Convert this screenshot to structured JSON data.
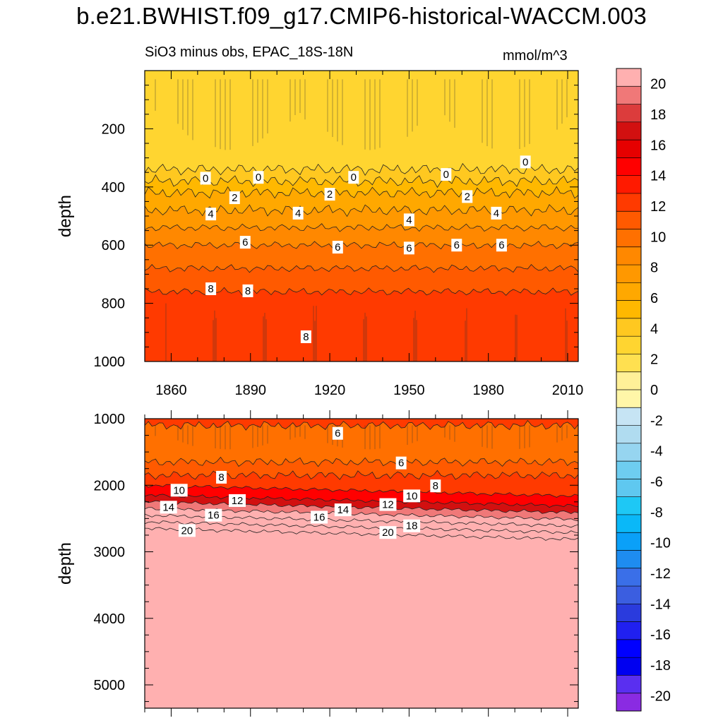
{
  "title": "b.e21.BWHIST.f09_g17.CMIP6-historical-WACCM.003",
  "subtitle_left": "SiO3 minus obs, EPAC_18S-18N",
  "subtitle_right": "mmol/m^3",
  "colors": {
    "palette": [
      "#8a2be2",
      "#5a2ff0",
      "#0000f0",
      "#0000ff",
      "#2020f0",
      "#2a3bdd",
      "#3b5ee0",
      "#3a6fe8",
      "#1e8cf0",
      "#0aa0f8",
      "#0ab8f8",
      "#1ec8f5",
      "#5fc8f0",
      "#6ecdf0",
      "#96d5f0",
      "#b0dcf0",
      "#c6e4f4",
      "#fff6a8",
      "#fff098",
      "#ffe050",
      "#ffd530",
      "#ffc820",
      "#ffb800",
      "#ffa800",
      "#ff9800",
      "#ff8800",
      "#ff7000",
      "#ff5a00",
      "#ff3a00",
      "#ff1a00",
      "#ff0000",
      "#e60000",
      "#d21010",
      "#dc3c3c",
      "#f07878",
      "#ffb0b0"
    ]
  },
  "chart_data": [
    {
      "type": "heatmap",
      "panel": "upper",
      "ylabel": "depth",
      "xlabel": "",
      "xlim": [
        1850,
        2014
      ],
      "ylim": [
        1000,
        0
      ],
      "x_ticks": [
        1860,
        1890,
        1920,
        1950,
        1980,
        2010
      ],
      "y_ticks": [
        200,
        400,
        600,
        800,
        1000
      ],
      "depth_bands": [
        {
          "depth_from": 0,
          "depth_to": 340,
          "value": -1
        },
        {
          "depth_from": 340,
          "depth_to": 380,
          "value": 0.5
        },
        {
          "depth_from": 380,
          "depth_to": 420,
          "value": 1.5
        },
        {
          "depth_from": 420,
          "depth_to": 480,
          "value": 2.5
        },
        {
          "depth_from": 480,
          "depth_to": 540,
          "value": 3.5
        },
        {
          "depth_from": 540,
          "depth_to": 600,
          "value": 4.5
        },
        {
          "depth_from": 600,
          "depth_to": 680,
          "value": 5.5
        },
        {
          "depth_from": 680,
          "depth_to": 760,
          "value": 6.5
        },
        {
          "depth_from": 760,
          "depth_to": 1000,
          "value": 7.5
        }
      ],
      "contour_labels": [
        {
          "text": "0",
          "x": 1873,
          "depth": 370
        },
        {
          "text": "0",
          "x": 1893,
          "depth": 367
        },
        {
          "text": "0",
          "x": 1929,
          "depth": 367
        },
        {
          "text": "0",
          "x": 1964,
          "depth": 357
        },
        {
          "text": "0",
          "x": 1994,
          "depth": 314
        },
        {
          "text": "2",
          "x": 1884,
          "depth": 437
        },
        {
          "text": "2",
          "x": 1920,
          "depth": 425
        },
        {
          "text": "2",
          "x": 1972,
          "depth": 433
        },
        {
          "text": "4",
          "x": 1875,
          "depth": 493
        },
        {
          "text": "4",
          "x": 1908,
          "depth": 490
        },
        {
          "text": "4",
          "x": 1950,
          "depth": 513
        },
        {
          "text": "4",
          "x": 1983,
          "depth": 490
        },
        {
          "text": "6",
          "x": 1888,
          "depth": 590
        },
        {
          "text": "6",
          "x": 1923,
          "depth": 607
        },
        {
          "text": "6",
          "x": 1950,
          "depth": 610
        },
        {
          "text": "6",
          "x": 1968,
          "depth": 600
        },
        {
          "text": "6",
          "x": 1985,
          "depth": 600
        },
        {
          "text": "8",
          "x": 1875,
          "depth": 750
        },
        {
          "text": "8",
          "x": 1889,
          "depth": 757
        },
        {
          "text": "8",
          "x": 1911,
          "depth": 915
        }
      ]
    },
    {
      "type": "heatmap",
      "panel": "lower",
      "ylabel": "depth",
      "xlabel": "",
      "xlim": [
        1850,
        2014
      ],
      "ylim": [
        5350,
        1000
      ],
      "x_ticks": [
        1860,
        1890,
        1920,
        1950,
        1980,
        2010
      ],
      "y_ticks": [
        1000,
        2000,
        3000,
        4000,
        5000
      ],
      "depth_bands": [
        {
          "depth_from": 1000,
          "depth_to": 1100,
          "value": 7.5
        },
        {
          "depth_from": 1100,
          "depth_to": 1650,
          "value": 5.5
        },
        {
          "depth_from": 1650,
          "depth_to": 1850,
          "value": 6.5
        },
        {
          "depth_from": 1850,
          "depth_to": 2000,
          "value": 7.5
        },
        {
          "depth_from": 2000,
          "depth_to": 2150,
          "value": 9
        },
        {
          "depth_from": 2150,
          "depth_to": 2250,
          "value": 11
        },
        {
          "depth_from": 2250,
          "depth_to": 2350,
          "value": 13
        },
        {
          "depth_from": 2350,
          "depth_to": 2450,
          "value": 15
        },
        {
          "depth_from": 2450,
          "depth_to": 2550,
          "value": 17
        },
        {
          "depth_from": 2550,
          "depth_to": 2650,
          "value": 19
        },
        {
          "depth_from": 2650,
          "depth_to": 5350,
          "value": 21
        }
      ],
      "contour_labels": [
        {
          "text": "6",
          "x": 1923,
          "depth": 1220
        },
        {
          "text": "6",
          "x": 1947,
          "depth": 1665
        },
        {
          "text": "8",
          "x": 1879,
          "depth": 1880
        },
        {
          "text": "8",
          "x": 1960,
          "depth": 2010
        },
        {
          "text": "10",
          "x": 1863,
          "depth": 2075
        },
        {
          "text": "10",
          "x": 1951,
          "depth": 2160
        },
        {
          "text": "12",
          "x": 1885,
          "depth": 2230
        },
        {
          "text": "12",
          "x": 1942,
          "depth": 2290
        },
        {
          "text": "14",
          "x": 1859,
          "depth": 2330
        },
        {
          "text": "14",
          "x": 1925,
          "depth": 2370
        },
        {
          "text": "16",
          "x": 1876,
          "depth": 2450
        },
        {
          "text": "16",
          "x": 1916,
          "depth": 2480
        },
        {
          "text": "18",
          "x": 1951,
          "depth": 2610
        },
        {
          "text": "20",
          "x": 1866,
          "depth": 2680
        },
        {
          "text": "20",
          "x": 1942,
          "depth": 2710
        }
      ]
    }
  ],
  "colorbar": {
    "units": "mmol/m^3",
    "min": -21,
    "max": 21,
    "step": 1,
    "tick_labels": [
      "20",
      "18",
      "16",
      "14",
      "12",
      "10",
      "8",
      "6",
      "4",
      "2",
      "0",
      "-2",
      "-4",
      "-6",
      "-8",
      "-10",
      "-12",
      "-14",
      "-16",
      "-18",
      "-20"
    ]
  }
}
